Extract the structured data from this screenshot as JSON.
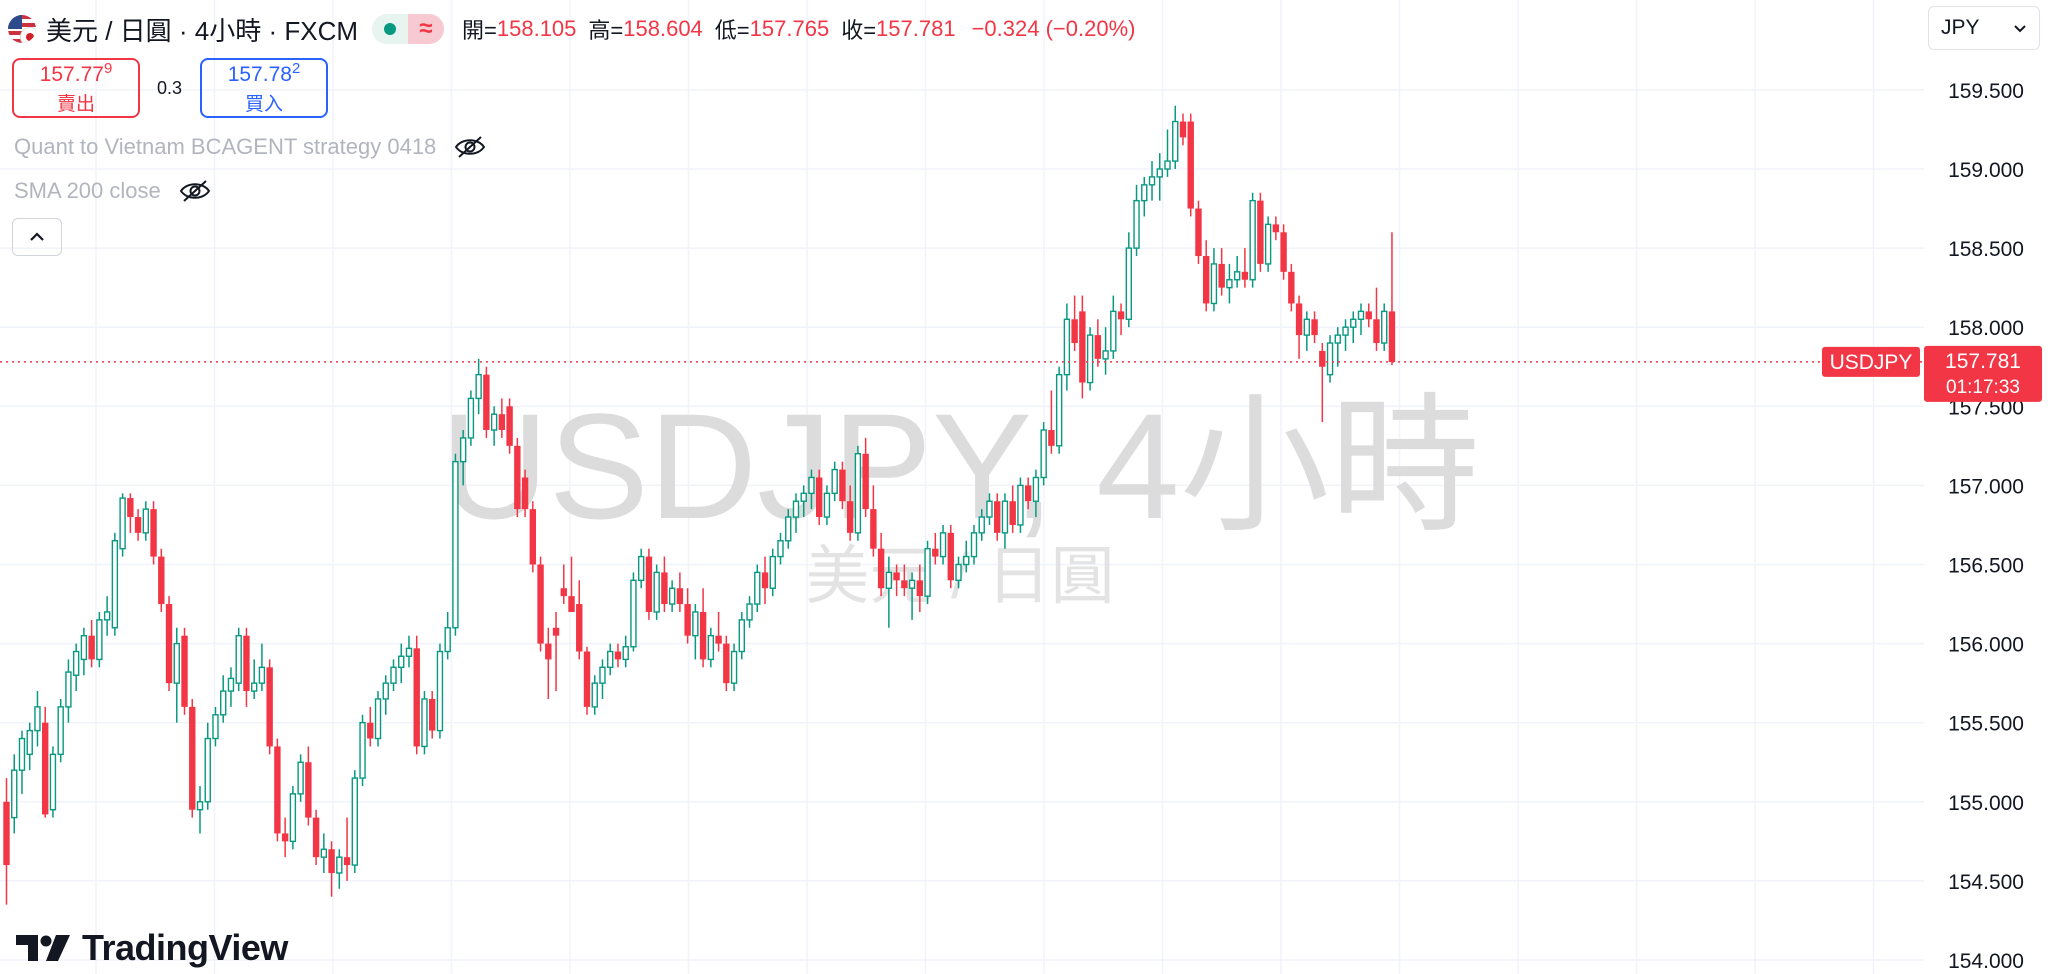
{
  "header": {
    "symbol_title": "美元 / 日圓 · 4小時 · FXCM",
    "ohlc": {
      "open_label": "開=",
      "open": "158.105",
      "high_label": "高=",
      "high": "158.604",
      "low_label": "低=",
      "low": "157.765",
      "close_label": "收=",
      "close": "157.781",
      "change": "−0.324 (−0.20%)"
    }
  },
  "trade": {
    "sell_price_main": "157.77",
    "sell_price_sup": "9",
    "sell_label": "賣出",
    "spread": "0.3",
    "buy_price_main": "157.78",
    "buy_price_sup": "2",
    "buy_label": "買入"
  },
  "indicators": [
    {
      "label": "Quant to Vietnam BCAGENT strategy 0418"
    },
    {
      "label": "SMA 200 close"
    }
  ],
  "currency_select": {
    "value": "JPY"
  },
  "watermark": {
    "line1": "USDJPY, 4小時",
    "line2": "美元 / 日圓"
  },
  "brand": {
    "logo_text": "TradingView"
  },
  "colors": {
    "up": "#089981",
    "down": "#f23645",
    "grid": "#f0f3fa",
    "text": "#131722",
    "muted": "#b2b5be"
  },
  "chart_data": {
    "type": "candlestick",
    "y_axis": {
      "min": 154.0,
      "max": 159.5,
      "ticks": [
        "154.000",
        "154.500",
        "155.000",
        "155.500",
        "156.000",
        "156.500",
        "157.000",
        "157.500",
        "158.000",
        "158.500",
        "159.000",
        "159.500"
      ]
    },
    "current_price": {
      "symbol": "USDJPY",
      "value": "157.781",
      "countdown": "01:17:33"
    },
    "candles": [
      {
        "o": 155.0,
        "h": 155.15,
        "l": 154.35,
        "c": 154.6
      },
      {
        "o": 154.9,
        "h": 155.3,
        "l": 154.8,
        "c": 155.2
      },
      {
        "o": 155.2,
        "h": 155.45,
        "l": 155.05,
        "c": 155.4
      },
      {
        "o": 155.3,
        "h": 155.5,
        "l": 155.2,
        "c": 155.45
      },
      {
        "o": 155.45,
        "h": 155.7,
        "l": 155.35,
        "c": 155.6
      },
      {
        "o": 155.5,
        "h": 155.6,
        "l": 154.9,
        "c": 154.92
      },
      {
        "o": 154.95,
        "h": 155.35,
        "l": 154.9,
        "c": 155.3
      },
      {
        "o": 155.3,
        "h": 155.65,
        "l": 155.25,
        "c": 155.6
      },
      {
        "o": 155.6,
        "h": 155.9,
        "l": 155.5,
        "c": 155.82
      },
      {
        "o": 155.8,
        "h": 156.0,
        "l": 155.7,
        "c": 155.95
      },
      {
        "o": 155.9,
        "h": 156.1,
        "l": 155.8,
        "c": 156.05
      },
      {
        "o": 156.05,
        "h": 156.15,
        "l": 155.85,
        "c": 155.9
      },
      {
        "o": 155.9,
        "h": 156.2,
        "l": 155.85,
        "c": 156.15
      },
      {
        "o": 156.15,
        "h": 156.3,
        "l": 156.05,
        "c": 156.2
      },
      {
        "o": 156.1,
        "h": 156.7,
        "l": 156.05,
        "c": 156.65
      },
      {
        "o": 156.6,
        "h": 156.95,
        "l": 156.55,
        "c": 156.92
      },
      {
        "o": 156.92,
        "h": 156.95,
        "l": 156.7,
        "c": 156.8
      },
      {
        "o": 156.8,
        "h": 156.85,
        "l": 156.65,
        "c": 156.7
      },
      {
        "o": 156.7,
        "h": 156.9,
        "l": 156.65,
        "c": 156.85
      },
      {
        "o": 156.85,
        "h": 156.9,
        "l": 156.5,
        "c": 156.55
      },
      {
        "o": 156.55,
        "h": 156.6,
        "l": 156.2,
        "c": 156.25
      },
      {
        "o": 156.25,
        "h": 156.3,
        "l": 155.7,
        "c": 155.75
      },
      {
        "o": 155.75,
        "h": 156.1,
        "l": 155.5,
        "c": 156.0
      },
      {
        "o": 156.05,
        "h": 156.1,
        "l": 155.55,
        "c": 155.6
      },
      {
        "o": 155.6,
        "h": 155.65,
        "l": 154.9,
        "c": 154.95
      },
      {
        "o": 154.95,
        "h": 155.1,
        "l": 154.8,
        "c": 155.0
      },
      {
        "o": 155.0,
        "h": 155.5,
        "l": 154.95,
        "c": 155.4
      },
      {
        "o": 155.4,
        "h": 155.6,
        "l": 155.35,
        "c": 155.55
      },
      {
        "o": 155.55,
        "h": 155.8,
        "l": 155.5,
        "c": 155.7
      },
      {
        "o": 155.7,
        "h": 155.85,
        "l": 155.6,
        "c": 155.78
      },
      {
        "o": 155.75,
        "h": 156.1,
        "l": 155.7,
        "c": 156.05
      },
      {
        "o": 156.05,
        "h": 156.1,
        "l": 155.6,
        "c": 155.7
      },
      {
        "o": 155.7,
        "h": 155.9,
        "l": 155.65,
        "c": 155.75
      },
      {
        "o": 155.75,
        "h": 156.0,
        "l": 155.7,
        "c": 155.85
      },
      {
        "o": 155.85,
        "h": 155.9,
        "l": 155.3,
        "c": 155.35
      },
      {
        "o": 155.35,
        "h": 155.4,
        "l": 154.75,
        "c": 154.8
      },
      {
        "o": 154.8,
        "h": 154.9,
        "l": 154.65,
        "c": 154.75
      },
      {
        "o": 154.75,
        "h": 155.1,
        "l": 154.7,
        "c": 155.05
      },
      {
        "o": 155.05,
        "h": 155.3,
        "l": 155.0,
        "c": 155.25
      },
      {
        "o": 155.25,
        "h": 155.35,
        "l": 154.85,
        "c": 154.9
      },
      {
        "o": 154.9,
        "h": 154.95,
        "l": 154.6,
        "c": 154.65
      },
      {
        "o": 154.65,
        "h": 154.8,
        "l": 154.55,
        "c": 154.7
      },
      {
        "o": 154.7,
        "h": 154.75,
        "l": 154.4,
        "c": 154.55
      },
      {
        "o": 154.55,
        "h": 154.7,
        "l": 154.45,
        "c": 154.65
      },
      {
        "o": 154.65,
        "h": 154.9,
        "l": 154.5,
        "c": 154.6
      },
      {
        "o": 154.6,
        "h": 155.2,
        "l": 154.55,
        "c": 155.15
      },
      {
        "o": 155.15,
        "h": 155.55,
        "l": 155.1,
        "c": 155.5
      },
      {
        "o": 155.5,
        "h": 155.6,
        "l": 155.35,
        "c": 155.4
      },
      {
        "o": 155.4,
        "h": 155.7,
        "l": 155.35,
        "c": 155.65
      },
      {
        "o": 155.65,
        "h": 155.8,
        "l": 155.55,
        "c": 155.75
      },
      {
        "o": 155.75,
        "h": 155.9,
        "l": 155.7,
        "c": 155.85
      },
      {
        "o": 155.85,
        "h": 156.0,
        "l": 155.75,
        "c": 155.92
      },
      {
        "o": 155.92,
        "h": 156.05,
        "l": 155.85,
        "c": 155.97
      },
      {
        "o": 155.97,
        "h": 156.05,
        "l": 155.3,
        "c": 155.35
      },
      {
        "o": 155.35,
        "h": 155.7,
        "l": 155.3,
        "c": 155.65
      },
      {
        "o": 155.65,
        "h": 155.7,
        "l": 155.4,
        "c": 155.45
      },
      {
        "o": 155.45,
        "h": 156.0,
        "l": 155.4,
        "c": 155.95
      },
      {
        "o": 155.95,
        "h": 156.2,
        "l": 155.9,
        "c": 156.1
      },
      {
        "o": 156.1,
        "h": 157.2,
        "l": 156.05,
        "c": 157.15
      },
      {
        "o": 157.15,
        "h": 157.35,
        "l": 157.0,
        "c": 157.3
      },
      {
        "o": 157.3,
        "h": 157.6,
        "l": 157.25,
        "c": 157.55
      },
      {
        "o": 157.55,
        "h": 157.8,
        "l": 157.45,
        "c": 157.7
      },
      {
        "o": 157.7,
        "h": 157.75,
        "l": 157.3,
        "c": 157.35
      },
      {
        "o": 157.35,
        "h": 157.5,
        "l": 157.25,
        "c": 157.45
      },
      {
        "o": 157.45,
        "h": 157.55,
        "l": 157.3,
        "c": 157.35
      },
      {
        "o": 157.5,
        "h": 157.55,
        "l": 157.2,
        "c": 157.25
      },
      {
        "o": 157.25,
        "h": 157.3,
        "l": 156.8,
        "c": 156.85
      },
      {
        "o": 157.05,
        "h": 157.1,
        "l": 156.8,
        "c": 156.85
      },
      {
        "o": 156.85,
        "h": 156.9,
        "l": 156.45,
        "c": 156.5
      },
      {
        "o": 156.5,
        "h": 156.55,
        "l": 155.95,
        "c": 156.0
      },
      {
        "o": 156.0,
        "h": 156.1,
        "l": 155.65,
        "c": 155.9
      },
      {
        "o": 156.1,
        "h": 156.2,
        "l": 155.7,
        "c": 156.05
      },
      {
        "o": 156.35,
        "h": 156.5,
        "l": 156.25,
        "c": 156.3
      },
      {
        "o": 156.3,
        "h": 156.55,
        "l": 156.2,
        "c": 156.2
      },
      {
        "o": 156.25,
        "h": 156.4,
        "l": 155.9,
        "c": 155.95
      },
      {
        "o": 155.95,
        "h": 155.98,
        "l": 155.55,
        "c": 155.6
      },
      {
        "o": 155.6,
        "h": 155.8,
        "l": 155.55,
        "c": 155.75
      },
      {
        "o": 155.75,
        "h": 155.9,
        "l": 155.65,
        "c": 155.85
      },
      {
        "o": 155.85,
        "h": 156.0,
        "l": 155.8,
        "c": 155.95
      },
      {
        "o": 155.95,
        "h": 156.0,
        "l": 155.85,
        "c": 155.9
      },
      {
        "o": 155.9,
        "h": 156.05,
        "l": 155.85,
        "c": 155.98
      },
      {
        "o": 155.98,
        "h": 156.45,
        "l": 155.95,
        "c": 156.4
      },
      {
        "o": 156.4,
        "h": 156.6,
        "l": 156.35,
        "c": 156.55
      },
      {
        "o": 156.55,
        "h": 156.6,
        "l": 156.15,
        "c": 156.2
      },
      {
        "o": 156.2,
        "h": 156.5,
        "l": 156.15,
        "c": 156.45
      },
      {
        "o": 156.45,
        "h": 156.55,
        "l": 156.2,
        "c": 156.25
      },
      {
        "o": 156.25,
        "h": 156.4,
        "l": 156.2,
        "c": 156.35
      },
      {
        "o": 156.35,
        "h": 156.45,
        "l": 156.2,
        "c": 156.25
      },
      {
        "o": 156.25,
        "h": 156.35,
        "l": 156.0,
        "c": 156.05
      },
      {
        "o": 156.05,
        "h": 156.25,
        "l": 155.9,
        "c": 156.2
      },
      {
        "o": 156.2,
        "h": 156.35,
        "l": 155.85,
        "c": 155.9
      },
      {
        "o": 155.9,
        "h": 156.1,
        "l": 155.85,
        "c": 156.05
      },
      {
        "o": 156.05,
        "h": 156.2,
        "l": 155.95,
        "c": 156.0
      },
      {
        "o": 156.0,
        "h": 156.05,
        "l": 155.7,
        "c": 155.75
      },
      {
        "o": 155.75,
        "h": 156.0,
        "l": 155.7,
        "c": 155.95
      },
      {
        "o": 155.95,
        "h": 156.2,
        "l": 155.9,
        "c": 156.15
      },
      {
        "o": 156.15,
        "h": 156.3,
        "l": 156.1,
        "c": 156.25
      },
      {
        "o": 156.25,
        "h": 156.5,
        "l": 156.2,
        "c": 156.45
      },
      {
        "o": 156.45,
        "h": 156.55,
        "l": 156.25,
        "c": 156.35
      },
      {
        "o": 156.35,
        "h": 156.6,
        "l": 156.3,
        "c": 156.55
      },
      {
        "o": 156.55,
        "h": 156.7,
        "l": 156.5,
        "c": 156.65
      },
      {
        "o": 156.65,
        "h": 156.85,
        "l": 156.6,
        "c": 156.8
      },
      {
        "o": 156.8,
        "h": 156.95,
        "l": 156.7,
        "c": 156.9
      },
      {
        "o": 156.9,
        "h": 157.0,
        "l": 156.8,
        "c": 156.95
      },
      {
        "o": 156.95,
        "h": 157.1,
        "l": 156.85,
        "c": 157.05
      },
      {
        "o": 157.05,
        "h": 157.1,
        "l": 156.75,
        "c": 156.8
      },
      {
        "o": 156.8,
        "h": 157.0,
        "l": 156.75,
        "c": 156.95
      },
      {
        "o": 156.95,
        "h": 157.15,
        "l": 156.9,
        "c": 157.1
      },
      {
        "o": 157.1,
        "h": 157.15,
        "l": 156.85,
        "c": 156.9
      },
      {
        "o": 156.9,
        "h": 157.0,
        "l": 156.65,
        "c": 156.7
      },
      {
        "o": 156.7,
        "h": 157.25,
        "l": 156.65,
        "c": 157.2
      },
      {
        "o": 157.2,
        "h": 157.3,
        "l": 156.8,
        "c": 156.85
      },
      {
        "o": 156.85,
        "h": 157.0,
        "l": 156.55,
        "c": 156.6
      },
      {
        "o": 156.6,
        "h": 156.7,
        "l": 156.3,
        "c": 156.35
      },
      {
        "o": 156.35,
        "h": 156.55,
        "l": 156.1,
        "c": 156.45
      },
      {
        "o": 156.45,
        "h": 156.5,
        "l": 156.3,
        "c": 156.4
      },
      {
        "o": 156.4,
        "h": 156.5,
        "l": 156.3,
        "c": 156.35
      },
      {
        "o": 156.35,
        "h": 156.45,
        "l": 156.15,
        "c": 156.4
      },
      {
        "o": 156.4,
        "h": 156.5,
        "l": 156.2,
        "c": 156.3
      },
      {
        "o": 156.3,
        "h": 156.65,
        "l": 156.25,
        "c": 156.6
      },
      {
        "o": 156.6,
        "h": 156.7,
        "l": 156.5,
        "c": 156.55
      },
      {
        "o": 156.55,
        "h": 156.75,
        "l": 156.5,
        "c": 156.7
      },
      {
        "o": 156.7,
        "h": 156.75,
        "l": 156.35,
        "c": 156.4
      },
      {
        "o": 156.4,
        "h": 156.55,
        "l": 156.35,
        "c": 156.5
      },
      {
        "o": 156.5,
        "h": 156.65,
        "l": 156.45,
        "c": 156.55
      },
      {
        "o": 156.55,
        "h": 156.75,
        "l": 156.5,
        "c": 156.7
      },
      {
        "o": 156.7,
        "h": 156.85,
        "l": 156.65,
        "c": 156.8
      },
      {
        "o": 156.8,
        "h": 156.95,
        "l": 156.75,
        "c": 156.9
      },
      {
        "o": 156.9,
        "h": 156.95,
        "l": 156.65,
        "c": 156.7
      },
      {
        "o": 156.7,
        "h": 156.95,
        "l": 156.6,
        "c": 156.9
      },
      {
        "o": 156.9,
        "h": 157.0,
        "l": 156.7,
        "c": 156.75
      },
      {
        "o": 156.75,
        "h": 157.05,
        "l": 156.7,
        "c": 157.0
      },
      {
        "o": 157.0,
        "h": 157.05,
        "l": 156.85,
        "c": 156.9
      },
      {
        "o": 156.9,
        "h": 157.1,
        "l": 156.8,
        "c": 157.05
      },
      {
        "o": 157.05,
        "h": 157.4,
        "l": 157.0,
        "c": 157.35
      },
      {
        "o": 157.35,
        "h": 157.6,
        "l": 157.2,
        "c": 157.25
      },
      {
        "o": 157.25,
        "h": 157.75,
        "l": 157.2,
        "c": 157.7
      },
      {
        "o": 157.7,
        "h": 158.15,
        "l": 157.6,
        "c": 158.05
      },
      {
        "o": 158.05,
        "h": 158.2,
        "l": 157.85,
        "c": 157.9
      },
      {
        "o": 158.1,
        "h": 158.2,
        "l": 157.55,
        "c": 157.65
      },
      {
        "o": 157.65,
        "h": 158.0,
        "l": 157.6,
        "c": 157.95
      },
      {
        "o": 157.95,
        "h": 158.05,
        "l": 157.75,
        "c": 157.8
      },
      {
        "o": 157.8,
        "h": 158.0,
        "l": 157.7,
        "c": 157.85
      },
      {
        "o": 157.85,
        "h": 158.2,
        "l": 157.8,
        "c": 158.1
      },
      {
        "o": 158.1,
        "h": 158.15,
        "l": 157.95,
        "c": 158.05
      },
      {
        "o": 158.05,
        "h": 158.6,
        "l": 158.0,
        "c": 158.5
      },
      {
        "o": 158.5,
        "h": 158.9,
        "l": 158.45,
        "c": 158.8
      },
      {
        "o": 158.8,
        "h": 158.95,
        "l": 158.7,
        "c": 158.9
      },
      {
        "o": 158.9,
        "h": 159.05,
        "l": 158.8,
        "c": 158.95
      },
      {
        "o": 158.95,
        "h": 159.1,
        "l": 158.8,
        "c": 159.0
      },
      {
        "o": 159.0,
        "h": 159.25,
        "l": 158.95,
        "c": 159.05
      },
      {
        "o": 159.05,
        "h": 159.4,
        "l": 159.0,
        "c": 159.3
      },
      {
        "o": 159.3,
        "h": 159.35,
        "l": 159.15,
        "c": 159.2
      },
      {
        "o": 159.3,
        "h": 159.35,
        "l": 158.7,
        "c": 158.75
      },
      {
        "o": 158.75,
        "h": 158.8,
        "l": 158.4,
        "c": 158.45
      },
      {
        "o": 158.45,
        "h": 158.55,
        "l": 158.1,
        "c": 158.15
      },
      {
        "o": 158.15,
        "h": 158.5,
        "l": 158.1,
        "c": 158.4
      },
      {
        "o": 158.4,
        "h": 158.5,
        "l": 158.2,
        "c": 158.25
      },
      {
        "o": 158.25,
        "h": 158.4,
        "l": 158.15,
        "c": 158.3
      },
      {
        "o": 158.3,
        "h": 158.45,
        "l": 158.25,
        "c": 158.35
      },
      {
        "o": 158.35,
        "h": 158.5,
        "l": 158.25,
        "c": 158.3
      },
      {
        "o": 158.3,
        "h": 158.85,
        "l": 158.25,
        "c": 158.8
      },
      {
        "o": 158.8,
        "h": 158.85,
        "l": 158.35,
        "c": 158.4
      },
      {
        "o": 158.4,
        "h": 158.7,
        "l": 158.35,
        "c": 158.65
      },
      {
        "o": 158.65,
        "h": 158.7,
        "l": 158.55,
        "c": 158.6
      },
      {
        "o": 158.6,
        "h": 158.65,
        "l": 158.3,
        "c": 158.35
      },
      {
        "o": 158.35,
        "h": 158.4,
        "l": 158.1,
        "c": 158.15
      },
      {
        "o": 158.15,
        "h": 158.2,
        "l": 157.8,
        "c": 157.95
      },
      {
        "o": 157.95,
        "h": 158.1,
        "l": 157.85,
        "c": 158.05
      },
      {
        "o": 158.05,
        "h": 158.1,
        "l": 157.9,
        "c": 157.95
      },
      {
        "o": 157.85,
        "h": 157.9,
        "l": 157.4,
        "c": 157.75
      },
      {
        "o": 157.7,
        "h": 157.95,
        "l": 157.65,
        "c": 157.9
      },
      {
        "o": 157.9,
        "h": 158.0,
        "l": 157.75,
        "c": 157.95
      },
      {
        "o": 157.95,
        "h": 158.05,
        "l": 157.85,
        "c": 158.0
      },
      {
        "o": 158.0,
        "h": 158.1,
        "l": 157.9,
        "c": 158.05
      },
      {
        "o": 158.05,
        "h": 158.15,
        "l": 157.95,
        "c": 158.1
      },
      {
        "o": 158.1,
        "h": 158.15,
        "l": 158.0,
        "c": 158.05
      },
      {
        "o": 158.05,
        "h": 158.25,
        "l": 157.85,
        "c": 157.9
      },
      {
        "o": 157.9,
        "h": 158.15,
        "l": 157.85,
        "c": 158.1
      },
      {
        "o": 158.1,
        "h": 158.6,
        "l": 157.76,
        "c": 157.78
      }
    ]
  }
}
